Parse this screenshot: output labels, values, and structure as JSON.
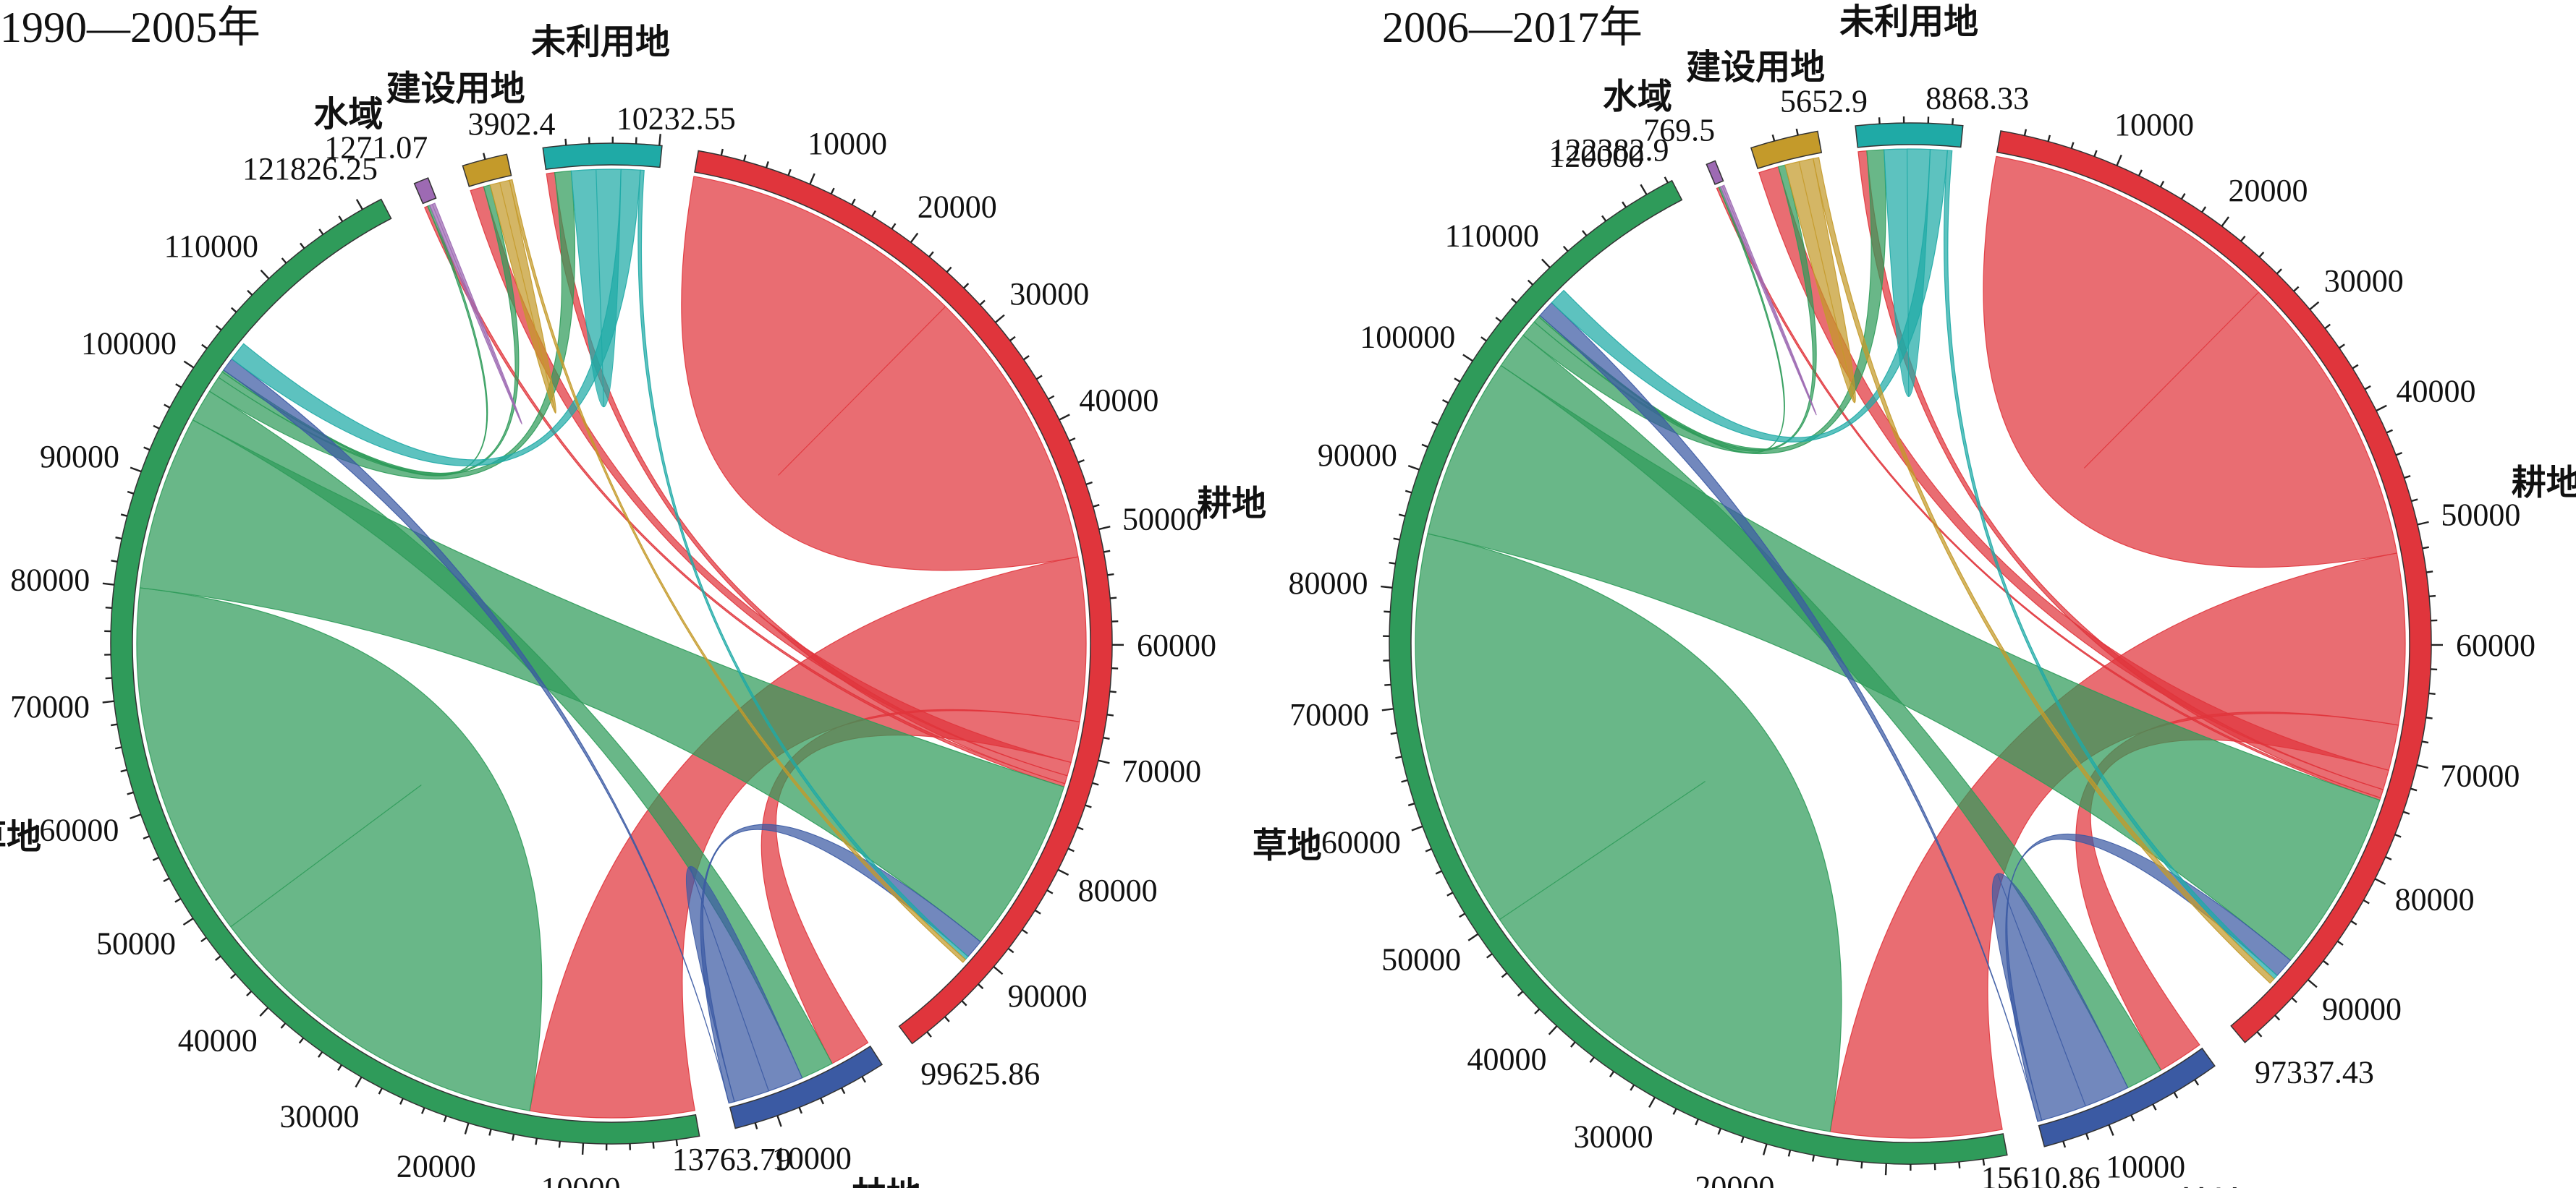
{
  "chart_data": [
    {
      "type": "chord",
      "title": "1990—2005年",
      "groups": [
        {
          "name": "耕地",
          "total": "99625.86",
          "value": 99625.86,
          "color": "#e0353c",
          "ticks": [
            "10000",
            "20000",
            "30000",
            "40000",
            "50000",
            "60000",
            "70000",
            "80000",
            "90000"
          ]
        },
        {
          "name": "林地",
          "total": "13763.79",
          "value": 13763.79,
          "color": "#3b5aa3",
          "ticks": [
            "10000"
          ]
        },
        {
          "name": "草地",
          "total": "121826.25",
          "value": 121826.25,
          "color": "#2f9b5a",
          "ticks": [
            "10000",
            "20000",
            "30000",
            "40000",
            "50000",
            "60000",
            "70000",
            "80000",
            "90000",
            "100000",
            "110000"
          ]
        },
        {
          "name": "水域",
          "total": "1271.07",
          "value": 1271.07,
          "color": "#9d6ab3",
          "ticks": []
        },
        {
          "name": "建设用地",
          "total": "3902.4",
          "value": 3902.4,
          "color": "#c49a2a",
          "ticks": []
        },
        {
          "name": "未利用地",
          "total": "10232.55",
          "value": 10232.55,
          "color": "#1faaa6",
          "ticks": []
        }
      ],
      "flows": [
        {
          "from": "耕地",
          "to": "耕地",
          "value": 52000
        },
        {
          "from": "耕地",
          "to": "草地",
          "value": 30000
        },
        {
          "from": "耕地",
          "to": "林地",
          "value": 7500
        },
        {
          "from": "耕地",
          "to": "建设用地",
          "value": 2500
        },
        {
          "from": "耕地",
          "to": "未利用地",
          "value": 1500
        },
        {
          "from": "耕地",
          "to": "水域",
          "value": 600
        },
        {
          "from": "草地",
          "to": "草地",
          "value": 65000
        },
        {
          "from": "草地",
          "to": "耕地",
          "value": 32000
        },
        {
          "from": "草地",
          "to": "林地",
          "value": 6000
        },
        {
          "from": "草地",
          "to": "未利用地",
          "value": 3000
        },
        {
          "from": "草地",
          "to": "建设用地",
          "value": 1200
        },
        {
          "from": "草地",
          "to": "水域",
          "value": 400
        },
        {
          "from": "林地",
          "to": "林地",
          "value": 6500
        },
        {
          "from": "林地",
          "to": "耕地",
          "value": 3500
        },
        {
          "from": "林地",
          "to": "草地",
          "value": 2500
        },
        {
          "from": "未利用地",
          "to": "未利用地",
          "value": 4500
        },
        {
          "from": "未利用地",
          "to": "草地",
          "value": 3500
        },
        {
          "from": "未利用地",
          "to": "耕地",
          "value": 700
        },
        {
          "from": "建设用地",
          "to": "建设用地",
          "value": 1800
        },
        {
          "from": "建设用地",
          "to": "耕地",
          "value": 700
        },
        {
          "from": "水域",
          "to": "水域",
          "value": 500
        }
      ]
    },
    {
      "type": "chord",
      "title": "2006—2017年",
      "groups": [
        {
          "name": "耕地",
          "total": "97337.43",
          "value": 97337.43,
          "color": "#e0353c",
          "ticks": [
            "10000",
            "20000",
            "30000",
            "40000",
            "50000",
            "60000",
            "70000",
            "80000",
            "90000"
          ]
        },
        {
          "name": "林地",
          "total": "15610.86",
          "value": 15610.86,
          "color": "#3b5aa3",
          "ticks": [
            "10000"
          ]
        },
        {
          "name": "草地",
          "total": "122382.9",
          "value": 122382.9,
          "color": "#2f9b5a",
          "ticks": [
            "10000",
            "20000",
            "30000",
            "40000",
            "50000",
            "60000",
            "70000",
            "80000",
            "90000",
            "100000",
            "110000",
            "120000"
          ]
        },
        {
          "name": "水域",
          "total": "769.5",
          "value": 769.5,
          "color": "#9d6ab3",
          "ticks": []
        },
        {
          "name": "建设用地",
          "total": "5652.9",
          "value": 5652.9,
          "color": "#c49a2a",
          "ticks": []
        },
        {
          "name": "未利用地",
          "total": "8868.33",
          "value": 8868.33,
          "color": "#1faaa6",
          "ticks": []
        }
      ],
      "flows": [
        {
          "from": "耕地",
          "to": "耕地",
          "value": 52000
        },
        {
          "from": "耕地",
          "to": "草地",
          "value": 30000
        },
        {
          "from": "耕地",
          "to": "林地",
          "value": 8000
        },
        {
          "from": "耕地",
          "to": "建设用地",
          "value": 3500
        },
        {
          "from": "耕地",
          "to": "未利用地",
          "value": 1500
        },
        {
          "from": "耕地",
          "to": "水域",
          "value": 400
        },
        {
          "from": "草地",
          "to": "草地",
          "value": 70000
        },
        {
          "from": "草地",
          "to": "耕地",
          "value": 32000
        },
        {
          "from": "草地",
          "to": "林地",
          "value": 6500
        },
        {
          "from": "草地",
          "to": "未利用地",
          "value": 3000
        },
        {
          "from": "草地",
          "to": "建设用地",
          "value": 1200
        },
        {
          "from": "草地",
          "to": "水域",
          "value": 300
        },
        {
          "from": "林地",
          "to": "林地",
          "value": 8000
        },
        {
          "from": "林地",
          "to": "耕地",
          "value": 3500
        },
        {
          "from": "林地",
          "to": "草地",
          "value": 3000
        },
        {
          "from": "未利用地",
          "to": "未利用地",
          "value": 4000
        },
        {
          "from": "未利用地",
          "to": "草地",
          "value": 3000
        },
        {
          "from": "未利用地",
          "to": "耕地",
          "value": 800
        },
        {
          "from": "建设用地",
          "to": "建设用地",
          "value": 2500
        },
        {
          "from": "建设用地",
          "to": "耕地",
          "value": 1000
        },
        {
          "from": "水域",
          "to": "水域",
          "value": 350
        }
      ]
    }
  ]
}
